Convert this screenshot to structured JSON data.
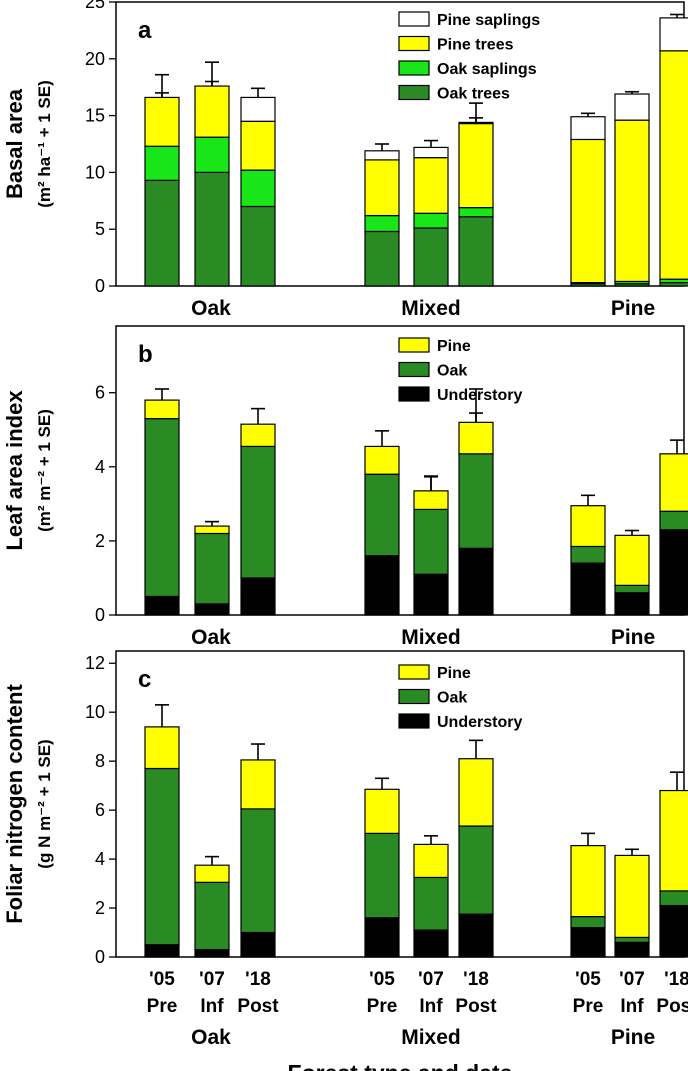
{
  "chart_data": [
    {
      "panel": "a",
      "type": "bar",
      "stacked": true,
      "ylabel": "Basal area",
      "ylabel_units": "(m² ha⁻¹ + 1 SE)",
      "ylim": [
        0,
        25
      ],
      "yticks": [
        0,
        5,
        10,
        15,
        20,
        25
      ],
      "groups": [
        "Oak",
        "Mixed",
        "Pine"
      ],
      "bars_per_group": 3,
      "legend": [
        "Pine saplings",
        "Pine trees",
        "Oak saplings",
        "Oak trees"
      ],
      "series": [
        {
          "name": "Oak trees",
          "color": "#2a8a24",
          "values": [
            9.3,
            10.0,
            7.0,
            4.8,
            5.1,
            6.1,
            0.2,
            0.2,
            0.3
          ],
          "err": [
            1.6,
            1.8,
            1.4,
            1.7,
            1.5,
            4.5,
            0,
            0,
            0
          ]
        },
        {
          "name": "Oak saplings",
          "color": "#19e619",
          "values": [
            3.0,
            3.1,
            3.2,
            1.4,
            1.3,
            0.8,
            0.1,
            0.2,
            0.3
          ],
          "err": [
            0.7,
            0.9,
            0.8,
            0.3,
            0.3,
            0.3,
            0.1,
            0.1,
            0.1
          ]
        },
        {
          "name": "Pine trees",
          "color": "#ffff00",
          "values": [
            4.3,
            4.5,
            4.3,
            4.9,
            4.9,
            7.4,
            12.6,
            14.2,
            20.1
          ],
          "err": [
            0.4,
            0.4,
            0.5,
            0.5,
            0.5,
            0.5,
            0.4,
            0.4,
            0.5
          ]
        },
        {
          "name": "Pine saplings",
          "color": "#ffffff",
          "values": [
            0.0,
            0.0,
            2.1,
            0.8,
            0.9,
            0.1,
            2.0,
            2.3,
            2.9
          ],
          "err": [
            2.0,
            2.1,
            0.8,
            0.6,
            0.6,
            1.7,
            0.3,
            0.2,
            0.3
          ]
        }
      ]
    },
    {
      "panel": "b",
      "type": "bar",
      "stacked": true,
      "ylabel": "Leaf area index",
      "ylabel_units": "(m² m⁻² + 1 SE)",
      "ylim": [
        0,
        7.8
      ],
      "yticks": [
        0,
        2,
        4,
        6
      ],
      "groups": [
        "Oak",
        "Mixed",
        "Pine"
      ],
      "bars_per_group": 3,
      "legend": [
        "Pine",
        "Oak",
        "Understory"
      ],
      "series": [
        {
          "name": "Understory",
          "color": "#000000",
          "values": [
            0.5,
            0.3,
            1.0,
            1.6,
            1.1,
            1.8,
            1.4,
            0.6,
            2.3
          ],
          "err": [
            0.1,
            0.1,
            0.15,
            1.0,
            0.55,
            0.55,
            0.15,
            0.1,
            0.15
          ]
        },
        {
          "name": "Oak",
          "color": "#2a8a24",
          "values": [
            4.8,
            1.9,
            3.55,
            2.2,
            1.75,
            2.55,
            0.45,
            0.2,
            0.5
          ],
          "err": [
            0.3,
            0.1,
            0.4,
            0.4,
            0.9,
            1.1,
            0.1,
            0.1,
            0.15
          ]
        },
        {
          "name": "Pine",
          "color": "#ffff00",
          "values": [
            0.5,
            0.2,
            0.6,
            0.75,
            0.5,
            0.85,
            1.1,
            1.35,
            1.55
          ],
          "err": [
            0.3,
            0.12,
            0.42,
            0.42,
            0.38,
            0.9,
            0.28,
            0.13,
            0.37
          ]
        }
      ]
    },
    {
      "panel": "c",
      "type": "bar",
      "stacked": true,
      "ylabel": "Foliar nitrogen content",
      "ylabel_units": "(g N m⁻² + 1 SE)",
      "ylim": [
        0,
        12.5
      ],
      "yticks": [
        0,
        2,
        4,
        6,
        8,
        10,
        12
      ],
      "groups": [
        "Oak",
        "Mixed",
        "Pine"
      ],
      "bars_per_group": 3,
      "legend": [
        "Pine",
        "Oak",
        "Understory"
      ],
      "series": [
        {
          "name": "Understory",
          "color": "#000000",
          "values": [
            0.5,
            0.3,
            1.0,
            1.6,
            1.1,
            1.75,
            1.2,
            0.6,
            2.1
          ],
          "err": [
            0.1,
            0.08,
            0.1,
            0.95,
            0.55,
            0.45,
            0.15,
            0.15,
            0.25
          ]
        },
        {
          "name": "Oak",
          "color": "#2a8a24",
          "values": [
            7.2,
            2.75,
            5.05,
            3.45,
            2.15,
            3.6,
            0.45,
            0.2,
            0.6
          ],
          "err": [
            0.6,
            0.15,
            0.7,
            0.7,
            0.5,
            2.5,
            0.15,
            0.1,
            0.2
          ]
        },
        {
          "name": "Pine",
          "color": "#ffff00",
          "values": [
            1.7,
            0.7,
            2.0,
            1.8,
            1.35,
            2.75,
            2.9,
            3.35,
            4.1
          ],
          "err": [
            0.9,
            0.35,
            0.65,
            0.45,
            0.35,
            0.75,
            0.5,
            0.25,
            0.75
          ]
        }
      ]
    }
  ],
  "x_axis": {
    "bar_year_labels": [
      "'05",
      "'07",
      "'18"
    ],
    "bar_phase_labels": [
      "Pre",
      "Inf",
      "Post"
    ],
    "group_labels": [
      "Oak",
      "Mixed",
      "Pine"
    ],
    "title": "Forest type and date"
  }
}
